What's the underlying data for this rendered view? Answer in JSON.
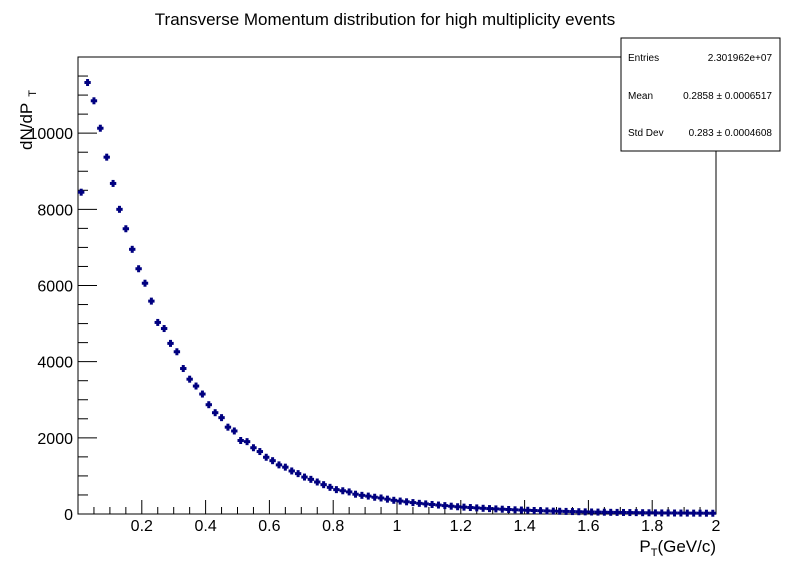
{
  "chart_data": {
    "type": "scatter",
    "title": "Transverse Momentum distribution for high multiplicity events",
    "xlabel": {
      "main": "P",
      "sub": "T",
      "rest": "(GeV/c)"
    },
    "ylabel": {
      "main": "dN/dP",
      "sub": "T"
    },
    "xlim": [
      0,
      2
    ],
    "ylim": [
      0,
      12000
    ],
    "x_ticks": [
      "0.2",
      "0.4",
      "0.6",
      "0.8",
      "1",
      "1.2",
      "1.4",
      "1.6",
      "1.8",
      "2"
    ],
    "y_ticks": [
      "0",
      "2000",
      "4000",
      "6000",
      "8000",
      "10000"
    ],
    "bin_width": 0.02,
    "marker_color": "#000080",
    "values": [
      8450,
      11330,
      10850,
      10130,
      9370,
      8680,
      8000,
      7490,
      6950,
      6440,
      6060,
      5590,
      5030,
      4870,
      4480,
      4260,
      3820,
      3540,
      3360,
      3150,
      2870,
      2660,
      2530,
      2280,
      2180,
      1930,
      1900,
      1740,
      1640,
      1490,
      1400,
      1290,
      1230,
      1130,
      1060,
      970,
      910,
      840,
      770,
      700,
      640,
      610,
      580,
      520,
      490,
      470,
      440,
      420,
      390,
      360,
      340,
      320,
      300,
      280,
      265,
      250,
      235,
      220,
      205,
      190,
      180,
      170,
      160,
      150,
      142,
      134,
      126,
      118,
      110,
      104,
      98,
      92,
      86,
      81,
      76,
      72,
      68,
      64,
      60,
      56,
      53,
      50,
      47,
      44,
      42,
      40,
      38,
      36,
      34,
      32,
      30,
      28,
      27,
      26,
      25,
      24,
      23,
      22,
      21,
      20
    ]
  },
  "stats": {
    "entries_label": "Entries",
    "entries_value": "2.301962e+07",
    "mean_label": "Mean",
    "mean_value": "0.2858 ± 0.0006517",
    "stddev_label": "Std Dev",
    "stddev_value": "0.283 ± 0.0004608"
  }
}
